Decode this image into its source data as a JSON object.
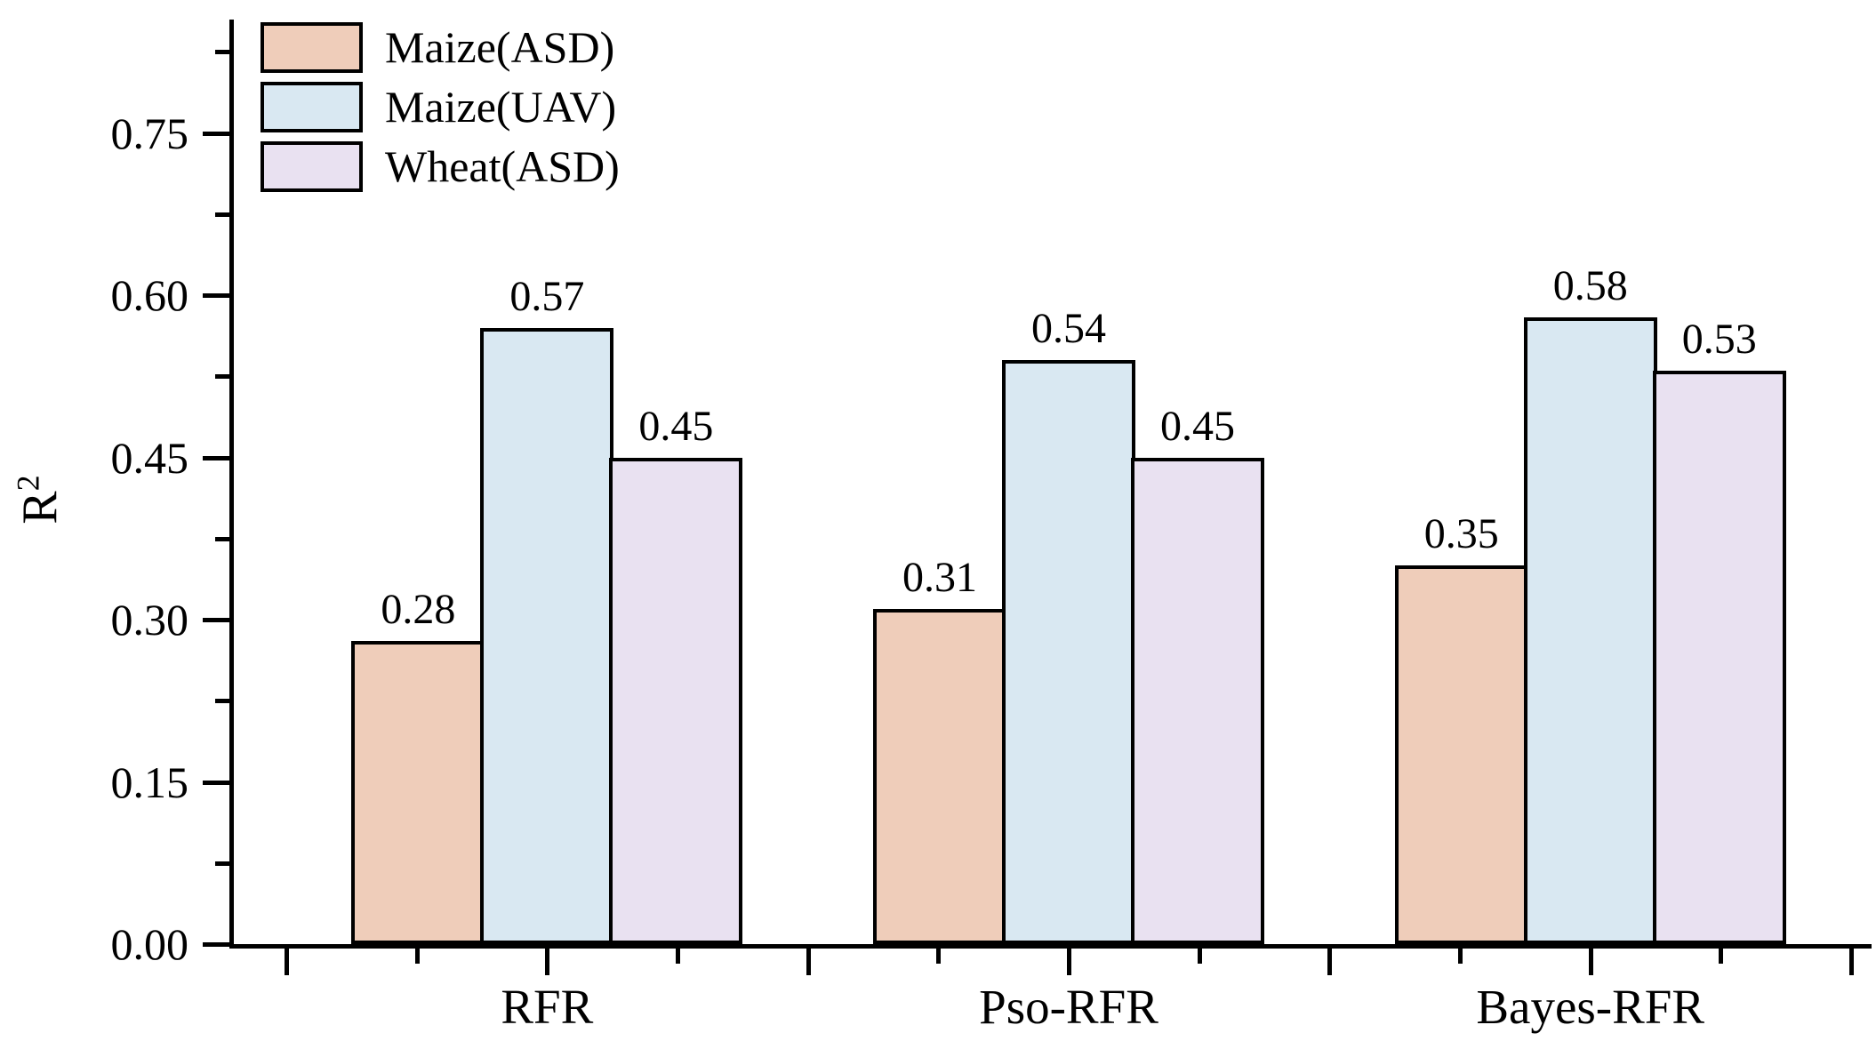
{
  "chart_data": {
    "type": "bar",
    "title": "",
    "categories": [
      "RFR",
      "Pso-RFR",
      "Bayes-RFR"
    ],
    "series": [
      {
        "name": "Maize(ASD)",
        "color": "#efcdba",
        "values": [
          0.28,
          0.31,
          0.35
        ],
        "labels": [
          "0.28",
          "0.31",
          "0.35"
        ]
      },
      {
        "name": "Maize(UAV)",
        "color": "#d9e8f2",
        "values": [
          0.57,
          0.54,
          0.58
        ],
        "labels": [
          "0.57",
          "0.54",
          "0.58"
        ]
      },
      {
        "name": "Wheat(ASD)",
        "color": "#e9e1f1",
        "values": [
          0.45,
          0.45,
          0.53
        ],
        "labels": [
          "0.45",
          "0.45",
          "0.53"
        ]
      }
    ],
    "xlabel": "",
    "ylabel": "R²",
    "ylabel_base": "R",
    "ylabel_superscript": "2",
    "ylim": [
      0,
      0.855
    ],
    "ytick_major_values": [
      0,
      0.15,
      0.3,
      0.45,
      0.6,
      0.75
    ],
    "ytick_labels": [
      "0.00",
      "0.15",
      "0.30",
      "0.45",
      "0.60",
      "0.75"
    ],
    "ytick_minor_values": [
      0.075,
      0.225,
      0.375,
      0.525,
      0.675,
      0.825
    ],
    "grid": false,
    "legend_position": "top-left",
    "legend_entries": [
      "Maize(ASD)",
      "Maize(UAV)",
      "Wheat(ASD)"
    ],
    "bar_outline_color": "#000000",
    "axis_color": "#000000",
    "background_color": "#ffffff"
  }
}
